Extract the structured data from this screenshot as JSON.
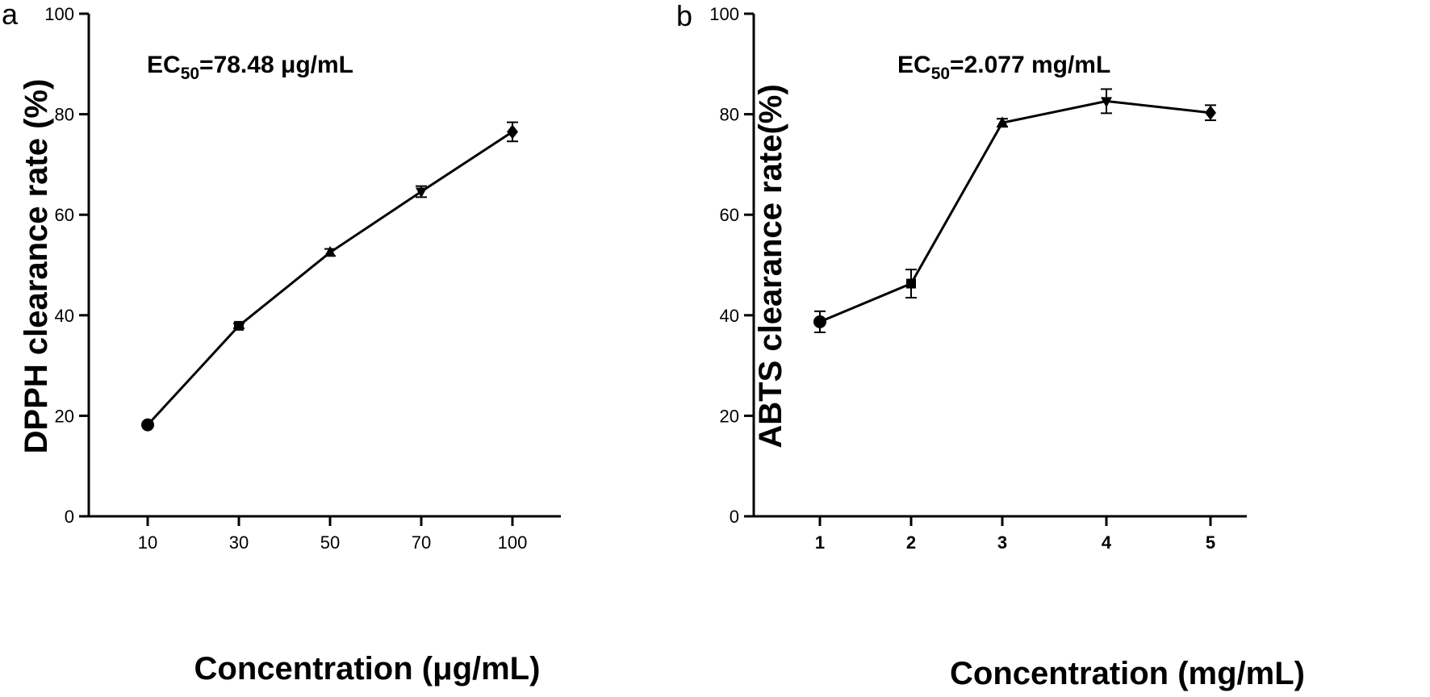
{
  "chart_data": [
    {
      "panel_label": "a",
      "type": "line",
      "title": "",
      "xlabel": "Concentration (μg/mL)",
      "ylabel": "DPPH clearance rate (%)",
      "categories": [
        "10",
        "30",
        "50",
        "70",
        "100"
      ],
      "ylim": [
        0,
        100
      ],
      "yticks": [
        "0",
        "20",
        "40",
        "60",
        "80",
        "100"
      ],
      "annotation": {
        "prefix": "EC",
        "subscript": "50",
        "suffix": "=78.48 μg/mL"
      },
      "grid": false,
      "series": [
        {
          "values": [
            18.2,
            37.9,
            52.5,
            64.6,
            76.5
          ],
          "errors": [
            0.4,
            0.5,
            0.7,
            1.1,
            1.9
          ],
          "markers": [
            "circle",
            "square",
            "triangle-up",
            "triangle-down",
            "diamond"
          ]
        }
      ]
    },
    {
      "panel_label": "b",
      "type": "line",
      "title": "",
      "xlabel": "Concentration (mg/mL)",
      "ylabel": "ABTS clearance rate(%)",
      "categories": [
        "1",
        "2",
        "3",
        "4",
        "5"
      ],
      "ylim": [
        0,
        100
      ],
      "yticks": [
        "0",
        "20",
        "40",
        "60",
        "80",
        "100"
      ],
      "annotation": {
        "prefix": "EC",
        "subscript": "50",
        "suffix": "=2.077 mg/mL"
      },
      "grid": false,
      "series": [
        {
          "values": [
            38.7,
            46.3,
            78.3,
            82.6,
            80.3
          ],
          "errors": [
            2.1,
            2.8,
            0.8,
            2.4,
            1.5
          ],
          "markers": [
            "circle",
            "square",
            "triangle-up",
            "triangle-down",
            "diamond"
          ]
        }
      ]
    }
  ]
}
